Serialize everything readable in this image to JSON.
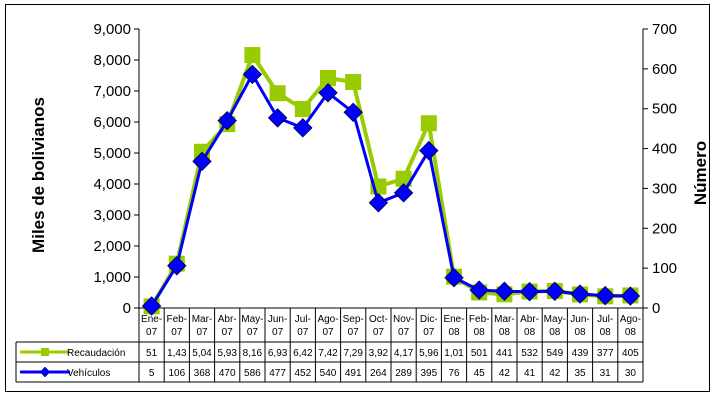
{
  "chart_data": {
    "type": "line",
    "categories": [
      "Ene-07",
      "Feb-07",
      "Mar-07",
      "Abr-07",
      "May-07",
      "Jun-07",
      "Jul-07",
      "Ago-07",
      "Sep-07",
      "Oct-07",
      "Nov-07",
      "Dic-07",
      "Ene-08",
      "Feb-08",
      "Mar-08",
      "Abr-08",
      "May-08",
      "Jun-08",
      "Jul-08",
      "Ago-08"
    ],
    "ylabel": "Miles de bolivianos",
    "y2label": "Número",
    "ylim": [
      0,
      9000
    ],
    "y2lim": [
      0,
      700
    ],
    "yticks": [
      "0",
      "1,000",
      "2,000",
      "3,000",
      "4,000",
      "5,000",
      "6,000",
      "7,000",
      "8,000",
      "9,000"
    ],
    "y2ticks": [
      "0",
      "100",
      "200",
      "300",
      "400",
      "500",
      "600",
      "700"
    ],
    "series": [
      {
        "name": "Recaudación",
        "axis": "left",
        "color": "#99cc00",
        "values": [
          51,
          1430,
          5040,
          5930,
          8160,
          6930,
          6420,
          7420,
          7290,
          3920,
          4170,
          5960,
          1010,
          501,
          441,
          532,
          549,
          439,
          377,
          405
        ],
        "table_values": [
          "51",
          "1,43",
          "5,04",
          "5,93",
          "8,16",
          "6,93",
          "6,42",
          "7,42",
          "7,29",
          "3,92",
          "4,17",
          "5,96",
          "1,01",
          "501",
          "441",
          "532",
          "549",
          "439",
          "377",
          "405"
        ]
      },
      {
        "name": "Vehículos",
        "axis": "right",
        "color": "#0000ff",
        "values": [
          5,
          106,
          368,
          470,
          586,
          477,
          452,
          540,
          491,
          264,
          289,
          395,
          76,
          45,
          42,
          41,
          42,
          35,
          31,
          30
        ],
        "table_values": [
          "5",
          "106",
          "368",
          "470",
          "586",
          "477",
          "452",
          "540",
          "491",
          "264",
          "289",
          "395",
          "76",
          "45",
          "42",
          "41",
          "42",
          "35",
          "31",
          "30"
        ]
      }
    ],
    "grid": false,
    "legend": "in data table"
  }
}
